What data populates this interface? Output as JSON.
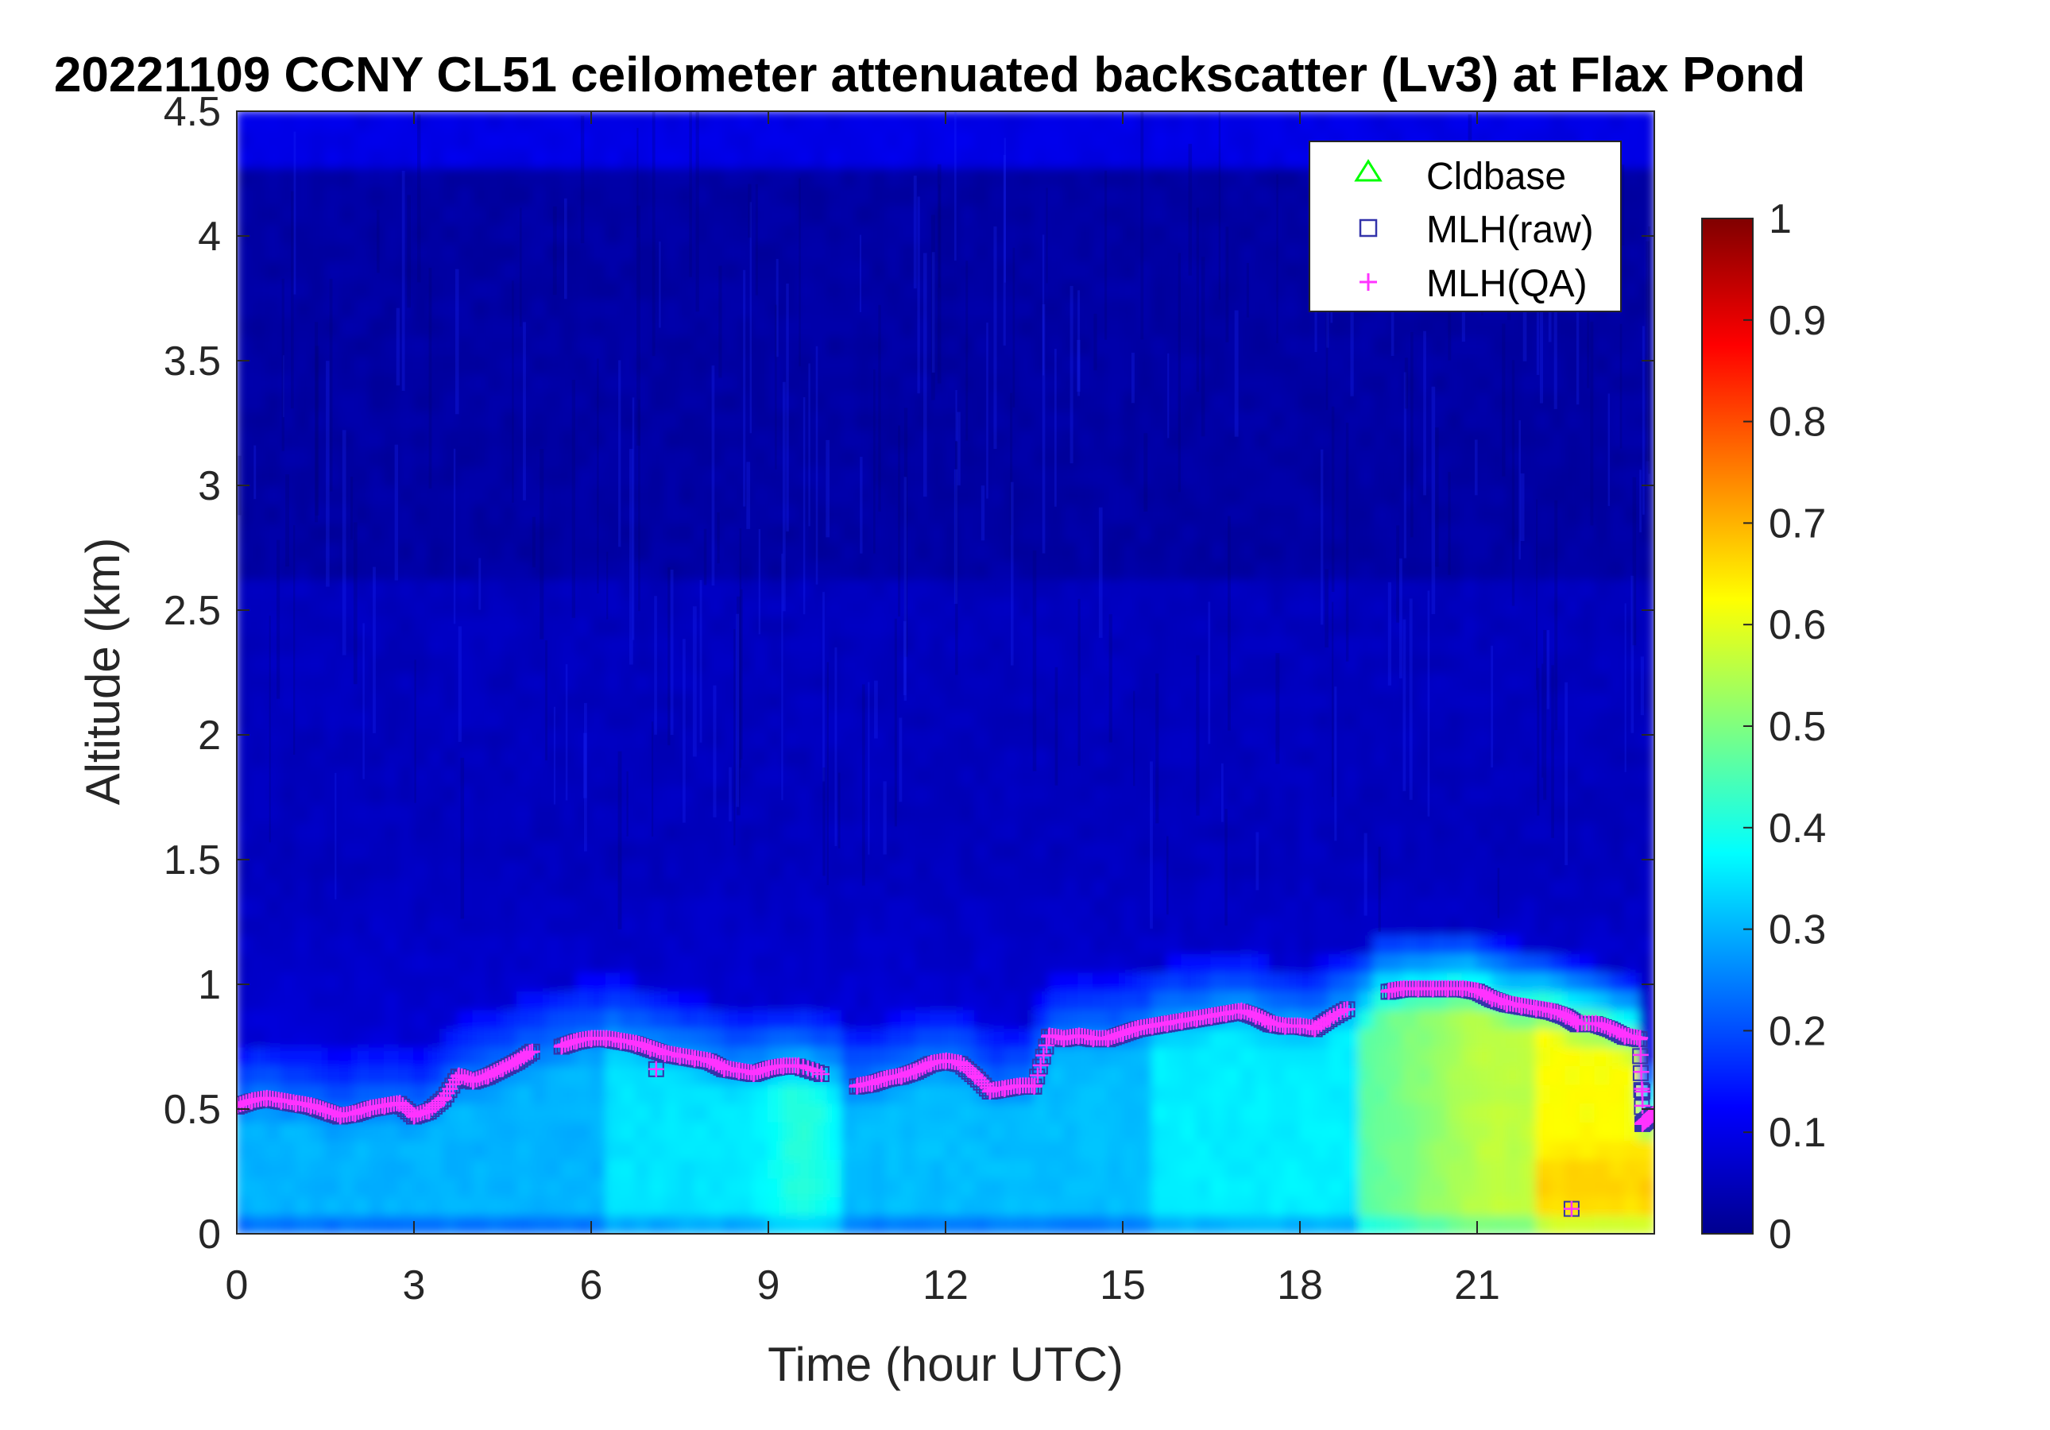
{
  "chart_data": {
    "type": "heatmap",
    "title": "20221109 CCNY CL51 ceilometer attenuated backscatter (Lv3) at Flax Pond",
    "xlabel": "Time (hour UTC)",
    "ylabel": "Altitude (km)",
    "xlim": [
      0,
      24
    ],
    "ylim": [
      0,
      4.5
    ],
    "xticks": [
      "0",
      "3",
      "6",
      "9",
      "12",
      "15",
      "18",
      "21"
    ],
    "xtick_values": [
      0,
      3,
      6,
      9,
      12,
      15,
      18,
      21
    ],
    "yticks": [
      "0",
      "0.5",
      "1",
      "1.5",
      "2",
      "2.5",
      "3",
      "3.5",
      "4",
      "4.5"
    ],
    "ytick_values": [
      0,
      0.5,
      1,
      1.5,
      2,
      2.5,
      3,
      3.5,
      4,
      4.5
    ],
    "colorbar": {
      "colormap": "jet",
      "range": [
        0,
        1
      ],
      "ticks": [
        "0",
        "0.1",
        "0.2",
        "0.3",
        "0.4",
        "0.5",
        "0.6",
        "0.7",
        "0.8",
        "0.9",
        "1"
      ],
      "tick_values": [
        0,
        0.1,
        0.2,
        0.3,
        0.4,
        0.5,
        0.6,
        0.7,
        0.8,
        0.9,
        1
      ]
    },
    "legend": {
      "placement": "top-right",
      "entries": [
        {
          "label": "Cldbase",
          "marker": "triangle",
          "color": "#00ff00"
        },
        {
          "label": "MLH(raw)",
          "marker": "square",
          "color": "#3333aa"
        },
        {
          "label": "MLH(QA)",
          "marker": "plus",
          "color": "#ff33ff"
        }
      ]
    },
    "mlh_series": [
      [
        0.0,
        0.51
      ],
      [
        0.25,
        0.53
      ],
      [
        0.5,
        0.54
      ],
      [
        0.75,
        0.53
      ],
      [
        1.0,
        0.52
      ],
      [
        1.25,
        0.51
      ],
      [
        1.5,
        0.49
      ],
      [
        1.75,
        0.47
      ],
      [
        2.0,
        0.48
      ],
      [
        2.25,
        0.5
      ],
      [
        2.5,
        0.51
      ],
      [
        2.75,
        0.52
      ],
      [
        3.0,
        0.47
      ],
      [
        3.25,
        0.49
      ],
      [
        3.5,
        0.54
      ],
      [
        3.75,
        0.63
      ],
      [
        4.0,
        0.61
      ],
      [
        4.25,
        0.63
      ],
      [
        4.5,
        0.66
      ],
      [
        4.75,
        0.69
      ],
      [
        5.0,
        0.73
      ],
      [
        5.5,
        0.75
      ],
      [
        5.75,
        0.77
      ],
      [
        6.0,
        0.78
      ],
      [
        6.25,
        0.78
      ],
      [
        6.5,
        0.77
      ],
      [
        6.75,
        0.76
      ],
      [
        7.0,
        0.74
      ],
      [
        7.25,
        0.72
      ],
      [
        7.5,
        0.71
      ],
      [
        7.75,
        0.7
      ],
      [
        8.0,
        0.69
      ],
      [
        8.25,
        0.66
      ],
      [
        8.5,
        0.65
      ],
      [
        8.75,
        0.64
      ],
      [
        9.0,
        0.66
      ],
      [
        9.25,
        0.67
      ],
      [
        9.5,
        0.67
      ],
      [
        9.9,
        0.64
      ],
      [
        10.5,
        0.59
      ],
      [
        10.75,
        0.6
      ],
      [
        11.0,
        0.62
      ],
      [
        11.25,
        0.63
      ],
      [
        11.5,
        0.65
      ],
      [
        11.75,
        0.68
      ],
      [
        12.0,
        0.69
      ],
      [
        12.25,
        0.68
      ],
      [
        12.5,
        0.63
      ],
      [
        12.75,
        0.57
      ],
      [
        13.0,
        0.58
      ],
      [
        13.25,
        0.59
      ],
      [
        13.5,
        0.59
      ],
      [
        13.75,
        0.79
      ],
      [
        14.0,
        0.78
      ],
      [
        14.25,
        0.79
      ],
      [
        14.5,
        0.78
      ],
      [
        14.75,
        0.78
      ],
      [
        15.0,
        0.8
      ],
      [
        15.25,
        0.82
      ],
      [
        15.5,
        0.83
      ],
      [
        15.75,
        0.84
      ],
      [
        16.0,
        0.85
      ],
      [
        16.25,
        0.86
      ],
      [
        16.5,
        0.87
      ],
      [
        16.75,
        0.88
      ],
      [
        17.0,
        0.89
      ],
      [
        17.25,
        0.87
      ],
      [
        17.5,
        0.84
      ],
      [
        17.75,
        0.83
      ],
      [
        18.0,
        0.83
      ],
      [
        18.25,
        0.82
      ],
      [
        18.5,
        0.86
      ],
      [
        18.8,
        0.9
      ],
      [
        19.5,
        0.97
      ],
      [
        19.75,
        0.98
      ],
      [
        20.0,
        0.98
      ],
      [
        20.25,
        0.98
      ],
      [
        20.5,
        0.98
      ],
      [
        20.75,
        0.98
      ],
      [
        21.0,
        0.97
      ],
      [
        21.25,
        0.94
      ],
      [
        21.5,
        0.92
      ],
      [
        21.75,
        0.91
      ],
      [
        22.0,
        0.9
      ],
      [
        22.25,
        0.89
      ],
      [
        22.5,
        0.87
      ],
      [
        22.7,
        0.84
      ],
      [
        23.0,
        0.84
      ],
      [
        23.25,
        0.82
      ],
      [
        23.5,
        0.79
      ],
      [
        23.75,
        0.78
      ],
      [
        23.8,
        0.44
      ],
      [
        23.9,
        0.46
      ],
      [
        24.0,
        0.48
      ]
    ],
    "mlh_outliers": [
      [
        7.1,
        0.66
      ],
      [
        22.6,
        0.1
      ],
      [
        23.8,
        0.57
      ]
    ]
  }
}
